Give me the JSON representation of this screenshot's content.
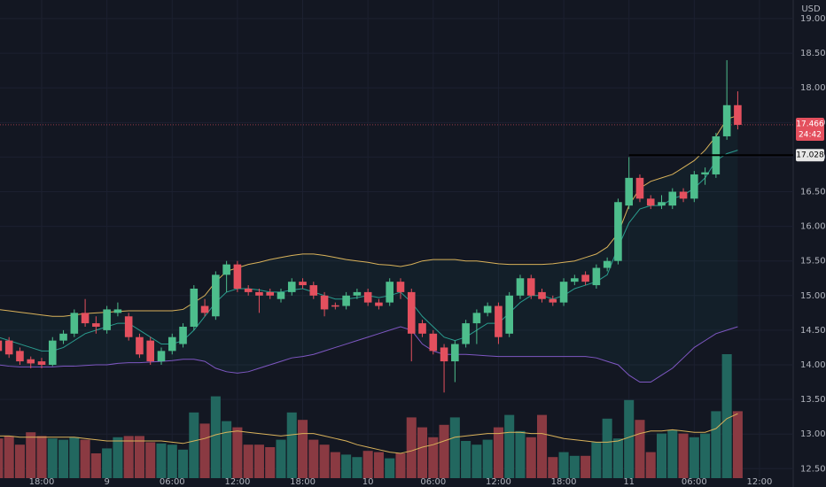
{
  "chart_data": {
    "type": "candlestick",
    "currency": "USD",
    "countdown": "24:42",
    "level": 17.028,
    "up_color": "#4dbd8c",
    "down_color": "#e4505e",
    "volume_up_color": "#22675f",
    "volume_down_color": "#8a3a42",
    "grid": true,
    "xlim": [
      0.17,
      73.1
    ],
    "xticks": [
      {
        "value": 4,
        "label": "18:00"
      },
      {
        "value": 10,
        "label": "9"
      },
      {
        "value": 16,
        "label": "06:00"
      },
      {
        "value": 22,
        "label": "12:00"
      },
      {
        "value": 28,
        "label": "18:00"
      },
      {
        "value": 34,
        "label": "10"
      },
      {
        "value": 40,
        "label": "06:00"
      },
      {
        "value": 46,
        "label": "12:00"
      },
      {
        "value": 52,
        "label": "18:00"
      },
      {
        "value": 58,
        "label": "11"
      },
      {
        "value": 64,
        "label": "06:00"
      },
      {
        "value": 70,
        "label": "12:00"
      }
    ],
    "ylim": [
      12.363,
      19.269
    ],
    "yticks": [
      {
        "value": 12.5,
        "label": "12.500"
      },
      {
        "value": 13,
        "label": "13.000"
      },
      {
        "value": 13.5,
        "label": "13.500"
      },
      {
        "value": 14,
        "label": "14.000"
      },
      {
        "value": 14.5,
        "label": "14.500"
      },
      {
        "value": 15,
        "label": "15.000"
      },
      {
        "value": 15.5,
        "label": "15.500"
      },
      {
        "value": 16,
        "label": "16.000"
      },
      {
        "value": 16.5,
        "label": "16.500"
      },
      {
        "value": 17,
        "label": "17.000"
      },
      {
        "value": 17.5,
        "label": "17.500"
      },
      {
        "value": 18,
        "label": "18.000"
      },
      {
        "value": 18.5,
        "label": "18.500"
      },
      {
        "value": 19,
        "label": "19.000"
      }
    ],
    "open": [
      14.35,
      14.35,
      14.2,
      14.08,
      14.05,
      14.0,
      14.35,
      14.45,
      14.75,
      14.6,
      14.5,
      14.75,
      14.7,
      14.4,
      14.35,
      14.05,
      14.2,
      14.3,
      14.55,
      14.85,
      14.7,
      15.3,
      15.45,
      15.1,
      15.05,
      15.05,
      14.95,
      15.05,
      15.2,
      15.15,
      15.0,
      14.86,
      14.85,
      15.0,
      15.05,
      14.9,
      14.9,
      15.2,
      15.05,
      14.6,
      14.45,
      14.25,
      14.05,
      14.3,
      14.6,
      14.75,
      14.85,
      14.45,
      15.0,
      15.25,
      15.05,
      14.95,
      14.9,
      15.2,
      15.3,
      15.15,
      15.4,
      15.5,
      16.3,
      16.7,
      16.4,
      16.3,
      16.3,
      16.5,
      16.4,
      16.75,
      16.75,
      17.3,
      17.75
    ],
    "high": [
      14.4,
      14.4,
      14.25,
      14.12,
      14.1,
      14.4,
      14.5,
      14.8,
      14.95,
      14.7,
      14.85,
      14.9,
      14.75,
      14.45,
      14.4,
      14.25,
      14.45,
      14.6,
      15.15,
      14.95,
      15.35,
      15.5,
      15.5,
      15.15,
      15.1,
      15.1,
      15.1,
      15.25,
      15.25,
      15.2,
      15.05,
      14.9,
      15.05,
      15.1,
      15.1,
      14.95,
      15.25,
      15.25,
      15.1,
      14.65,
      14.5,
      14.3,
      14.35,
      14.65,
      14.8,
      14.9,
      14.9,
      15.05,
      15.3,
      15.3,
      15.1,
      15.0,
      15.25,
      15.3,
      15.35,
      15.45,
      15.55,
      16.4,
      17.0,
      16.75,
      16.45,
      16.45,
      16.55,
      16.55,
      16.8,
      16.85,
      17.35,
      18.4,
      17.95
    ],
    "low": [
      14.15,
      14.1,
      14.0,
      13.95,
      13.95,
      13.98,
      14.3,
      14.4,
      14.55,
      14.45,
      14.45,
      14.7,
      14.35,
      14.1,
      14.0,
      14.0,
      14.15,
      14.25,
      14.5,
      14.7,
      14.65,
      15.05,
      15.05,
      15.0,
      14.75,
      14.95,
      14.9,
      15.0,
      15.1,
      14.95,
      14.7,
      14.8,
      14.8,
      14.95,
      14.85,
      14.8,
      14.85,
      14.95,
      14.05,
      14.4,
      14.15,
      13.6,
      13.75,
      14.25,
      14.3,
      14.7,
      14.3,
      14.4,
      14.95,
      14.95,
      14.9,
      14.85,
      14.85,
      15.15,
      15.15,
      15.1,
      15.35,
      15.45,
      16.25,
      16.35,
      16.25,
      16.25,
      16.25,
      16.35,
      16.35,
      16.6,
      16.7,
      17.25,
      17.4
    ],
    "close": [
      14.2,
      14.15,
      14.05,
      14.02,
      14.0,
      14.35,
      14.45,
      14.75,
      14.6,
      14.55,
      14.8,
      14.8,
      14.4,
      14.15,
      14.05,
      14.2,
      14.4,
      14.55,
      15.1,
      14.75,
      15.3,
      15.45,
      15.1,
      15.05,
      15.0,
      15.0,
      15.05,
      15.2,
      15.15,
      15.0,
      14.8,
      14.84,
      15.0,
      15.05,
      14.9,
      14.85,
      15.2,
      15.05,
      14.45,
      14.45,
      14.2,
      14.05,
      14.3,
      14.6,
      14.75,
      14.85,
      14.4,
      15.0,
      15.25,
      15.0,
      14.95,
      14.9,
      15.2,
      15.25,
      15.2,
      15.4,
      15.5,
      16.35,
      16.7,
      16.4,
      16.3,
      16.35,
      16.5,
      16.4,
      16.75,
      16.78,
      17.3,
      17.75,
      17.466
    ],
    "volume_lim": [
      0,
      100
    ],
    "volume": [
      32,
      34,
      27,
      37,
      34,
      32,
      31,
      33,
      31,
      20,
      24,
      33,
      34,
      34,
      29,
      28,
      27,
      23,
      53,
      44,
      66,
      46,
      41,
      27,
      27,
      25,
      31,
      53,
      47,
      31,
      27,
      21,
      19,
      17,
      22,
      21,
      16,
      20,
      49,
      41,
      33,
      43,
      49,
      30,
      27,
      31,
      41,
      51,
      38,
      33,
      51,
      17,
      21,
      18,
      18,
      29,
      48,
      32,
      63,
      47,
      21,
      36,
      39,
      36,
      33,
      36,
      54,
      100,
      54
    ],
    "volume_ma": {
      "color": "#d9b25a",
      "values": [
        34,
        34,
        33,
        33,
        33,
        33,
        33,
        33,
        32,
        31,
        30,
        30,
        30,
        30,
        30,
        30,
        29,
        28,
        30,
        32,
        35,
        37,
        38,
        37,
        36,
        35,
        34,
        35,
        36,
        36,
        34,
        32,
        30,
        27,
        25,
        23,
        21,
        20,
        22,
        25,
        27,
        30,
        33,
        34,
        35,
        36,
        36,
        37,
        37,
        36,
        36,
        34,
        32,
        31,
        30,
        29,
        29,
        30,
        33,
        36,
        38,
        38,
        39,
        38,
        37,
        37,
        40,
        48,
        52
      ]
    },
    "overlays": [
      {
        "color": "#d9b25a",
        "values": [
          14.8,
          14.78,
          14.76,
          14.74,
          14.72,
          14.7,
          14.7,
          14.72,
          14.74,
          14.75,
          14.76,
          14.77,
          14.78,
          14.78,
          14.78,
          14.78,
          14.78,
          14.8,
          14.9,
          15.0,
          15.2,
          15.35,
          15.4,
          15.45,
          15.48,
          15.52,
          15.55,
          15.58,
          15.6,
          15.6,
          15.58,
          15.55,
          15.52,
          15.5,
          15.48,
          15.45,
          15.44,
          15.42,
          15.45,
          15.5,
          15.52,
          15.52,
          15.52,
          15.5,
          15.5,
          15.48,
          15.46,
          15.45,
          15.45,
          15.45,
          15.45,
          15.46,
          15.48,
          15.5,
          15.55,
          15.6,
          15.7,
          15.9,
          16.3,
          16.55,
          16.65,
          16.7,
          16.75,
          16.85,
          16.95,
          17.1,
          17.3,
          17.55,
          17.6
        ]
      },
      {
        "color": "#7e57c2",
        "values": [
          14.0,
          13.98,
          13.97,
          13.97,
          13.97,
          13.97,
          13.98,
          13.98,
          13.99,
          14.0,
          14.0,
          14.02,
          14.03,
          14.03,
          14.04,
          14.05,
          14.06,
          14.08,
          14.08,
          14.05,
          13.95,
          13.9,
          13.88,
          13.9,
          13.95,
          14.0,
          14.05,
          14.1,
          14.12,
          14.15,
          14.2,
          14.25,
          14.3,
          14.35,
          14.4,
          14.45,
          14.5,
          14.55,
          14.5,
          14.3,
          14.2,
          14.15,
          14.15,
          14.15,
          14.14,
          14.13,
          14.12,
          14.12,
          14.12,
          14.12,
          14.12,
          14.12,
          14.12,
          14.12,
          14.12,
          14.1,
          14.05,
          14.0,
          13.85,
          13.75,
          13.75,
          13.85,
          13.95,
          14.1,
          14.25,
          14.35,
          14.45,
          14.5,
          14.55
        ]
      },
      {
        "color": "#2a9d8f",
        "values": [
          14.4,
          14.35,
          14.3,
          14.25,
          14.2,
          14.2,
          14.25,
          14.35,
          14.45,
          14.5,
          14.55,
          14.6,
          14.6,
          14.5,
          14.4,
          14.3,
          14.3,
          14.35,
          14.5,
          14.7,
          14.9,
          15.05,
          15.1,
          15.1,
          15.08,
          15.05,
          15.05,
          15.08,
          15.1,
          15.05,
          15.0,
          14.95,
          14.95,
          14.97,
          15.0,
          14.97,
          15.0,
          15.05,
          14.9,
          14.7,
          14.55,
          14.4,
          14.35,
          14.4,
          14.5,
          14.6,
          14.6,
          14.75,
          14.9,
          15.0,
          15.0,
          14.95,
          15.0,
          15.1,
          15.15,
          15.2,
          15.3,
          15.7,
          16.05,
          16.25,
          16.3,
          16.3,
          16.4,
          16.45,
          16.55,
          16.7,
          16.95,
          17.05,
          17.1
        ]
      }
    ]
  }
}
